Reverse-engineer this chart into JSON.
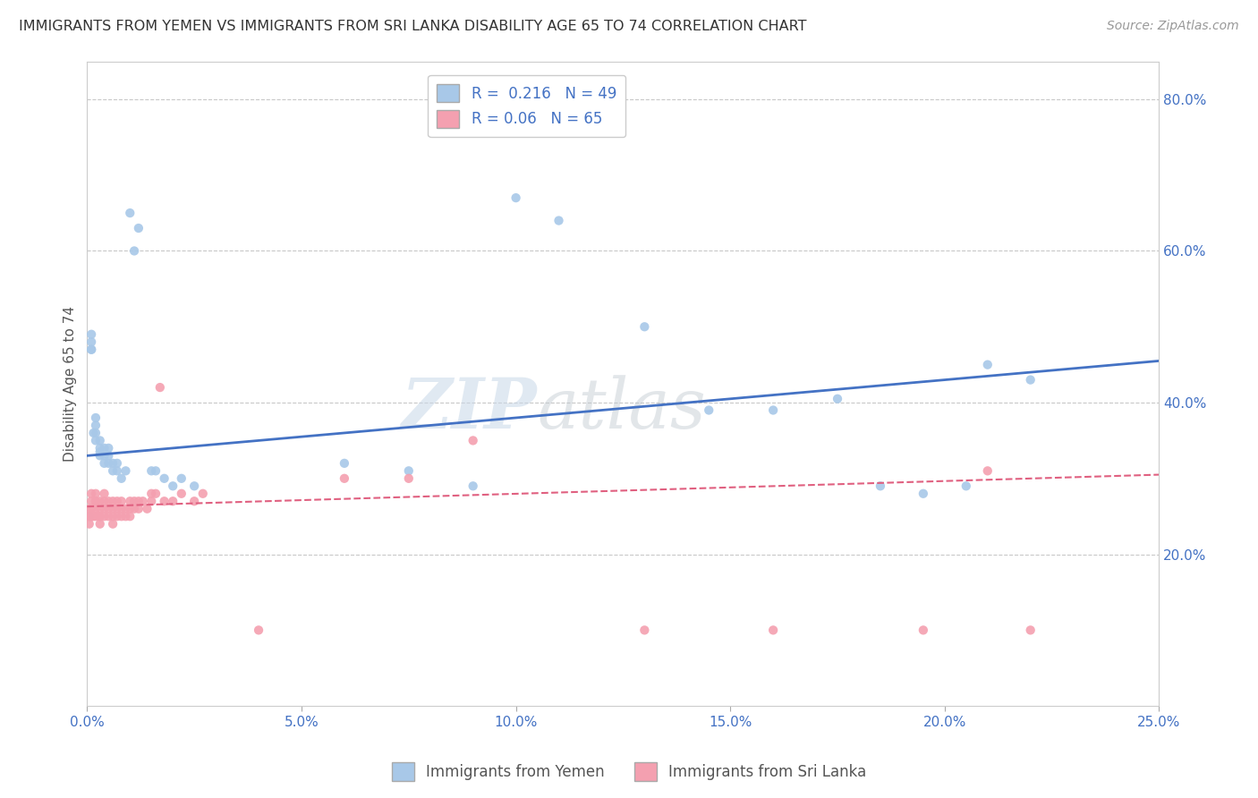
{
  "title": "IMMIGRANTS FROM YEMEN VS IMMIGRANTS FROM SRI LANKA DISABILITY AGE 65 TO 74 CORRELATION CHART",
  "source": "Source: ZipAtlas.com",
  "ylabel": "Disability Age 65 to 74",
  "xlabel": "",
  "watermark": "ZIPatlas",
  "yemen_R": 0.216,
  "yemen_N": 49,
  "srilanka_R": 0.06,
  "srilanka_N": 65,
  "yemen_color": "#a8c8e8",
  "srilanka_color": "#f4a0b0",
  "yemen_line_color": "#4472c4",
  "srilanka_line_color": "#e06080",
  "xlim": [
    0.0,
    0.25
  ],
  "ylim": [
    0.0,
    0.85
  ],
  "x_ticks": [
    0.0,
    0.05,
    0.1,
    0.15,
    0.2,
    0.25
  ],
  "y_ticks_right": [
    0.2,
    0.4,
    0.6,
    0.8
  ],
  "background_color": "#ffffff",
  "grid_color": "#c8c8c8",
  "yemen_line_y0": 0.33,
  "yemen_line_y1": 0.455,
  "srilanka_line_y0": 0.263,
  "srilanka_line_y1": 0.305,
  "yemen_x": [
    0.0005,
    0.001,
    0.001,
    0.001,
    0.001,
    0.0015,
    0.002,
    0.002,
    0.002,
    0.002,
    0.003,
    0.003,
    0.003,
    0.003,
    0.004,
    0.004,
    0.004,
    0.005,
    0.005,
    0.005,
    0.006,
    0.006,
    0.007,
    0.007,
    0.008,
    0.009,
    0.01,
    0.011,
    0.012,
    0.015,
    0.016,
    0.018,
    0.02,
    0.022,
    0.025,
    0.06,
    0.075,
    0.09,
    0.1,
    0.11,
    0.13,
    0.145,
    0.16,
    0.175,
    0.185,
    0.195,
    0.205,
    0.21,
    0.22
  ],
  "yemen_y": [
    0.25,
    0.47,
    0.47,
    0.48,
    0.49,
    0.36,
    0.35,
    0.36,
    0.37,
    0.38,
    0.33,
    0.335,
    0.34,
    0.35,
    0.32,
    0.33,
    0.34,
    0.32,
    0.33,
    0.34,
    0.31,
    0.32,
    0.31,
    0.32,
    0.3,
    0.31,
    0.65,
    0.6,
    0.63,
    0.31,
    0.31,
    0.3,
    0.29,
    0.3,
    0.29,
    0.32,
    0.31,
    0.29,
    0.67,
    0.64,
    0.5,
    0.39,
    0.39,
    0.405,
    0.29,
    0.28,
    0.29,
    0.45,
    0.43
  ],
  "srilanka_x": [
    0.0003,
    0.0005,
    0.0005,
    0.001,
    0.001,
    0.001,
    0.001,
    0.001,
    0.0015,
    0.002,
    0.002,
    0.002,
    0.002,
    0.002,
    0.003,
    0.003,
    0.003,
    0.003,
    0.003,
    0.004,
    0.004,
    0.004,
    0.004,
    0.005,
    0.005,
    0.005,
    0.006,
    0.006,
    0.006,
    0.006,
    0.007,
    0.007,
    0.007,
    0.008,
    0.008,
    0.008,
    0.009,
    0.009,
    0.01,
    0.01,
    0.01,
    0.011,
    0.011,
    0.012,
    0.012,
    0.013,
    0.014,
    0.015,
    0.015,
    0.016,
    0.017,
    0.018,
    0.02,
    0.022,
    0.025,
    0.027,
    0.04,
    0.06,
    0.075,
    0.09,
    0.13,
    0.16,
    0.195,
    0.21,
    0.22
  ],
  "srilanka_y": [
    0.25,
    0.24,
    0.26,
    0.25,
    0.25,
    0.26,
    0.27,
    0.28,
    0.25,
    0.25,
    0.26,
    0.27,
    0.27,
    0.28,
    0.24,
    0.25,
    0.25,
    0.26,
    0.27,
    0.25,
    0.26,
    0.27,
    0.28,
    0.25,
    0.26,
    0.27,
    0.24,
    0.25,
    0.26,
    0.27,
    0.25,
    0.26,
    0.27,
    0.25,
    0.26,
    0.27,
    0.25,
    0.26,
    0.25,
    0.26,
    0.27,
    0.26,
    0.27,
    0.26,
    0.27,
    0.27,
    0.26,
    0.27,
    0.28,
    0.28,
    0.42,
    0.27,
    0.27,
    0.28,
    0.27,
    0.28,
    0.1,
    0.3,
    0.3,
    0.35,
    0.1,
    0.1,
    0.1,
    0.31,
    0.1
  ]
}
